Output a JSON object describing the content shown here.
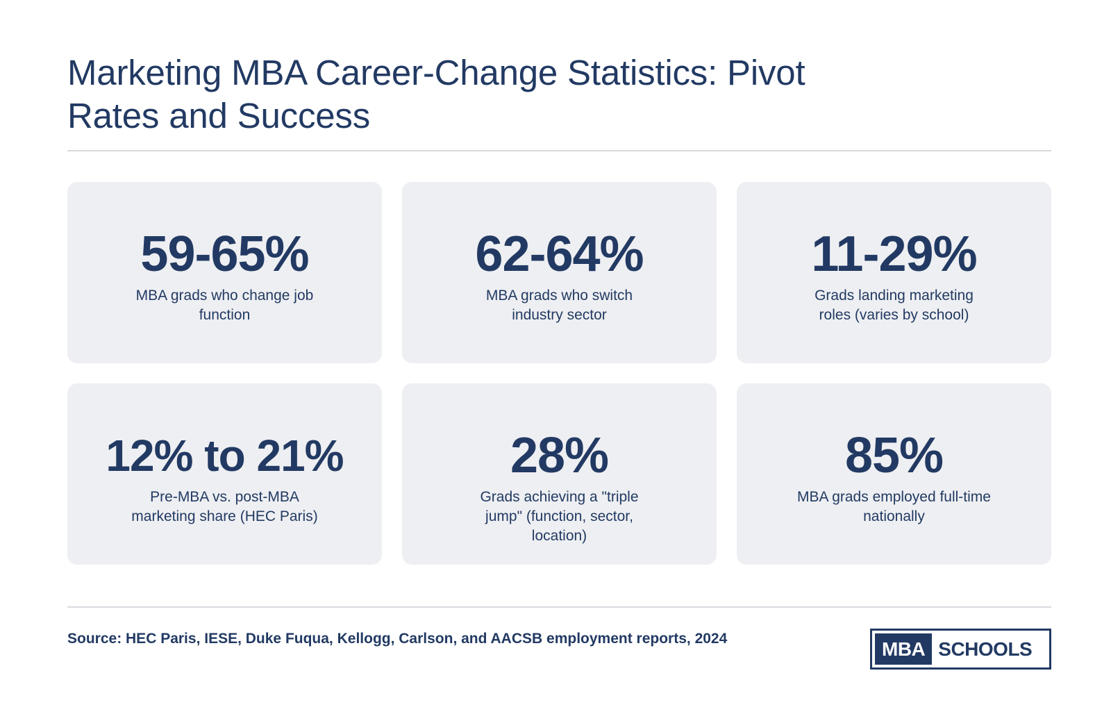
{
  "title": "Marketing MBA Career-Change Statistics: Pivot Rates and Success",
  "stats": [
    {
      "value": "59-65%",
      "label": "MBA grads who change job function"
    },
    {
      "value": "62-64%",
      "label": "MBA grads who switch industry sector"
    },
    {
      "value": "11-29%",
      "label": "Grads landing marketing roles (varies by school)"
    },
    {
      "value": "12% to 21%",
      "label": "Pre-MBA vs. post-MBA marketing share (HEC Paris)"
    },
    {
      "value": "28%",
      "label": "Grads achieving a \"triple jump\" (function, sector, location)"
    },
    {
      "value": "85%",
      "label": "MBA grads employed full-time nationally"
    }
  ],
  "source": "Source: HEC Paris, IESE, Duke Fuqua, Kellogg, Carlson, and AACSB employment reports, 2024",
  "logo": {
    "part1": "MBA",
    "part2": "SCHOOLS"
  },
  "colors": {
    "primary": "#223a63",
    "card_bg": "#eeeff2",
    "rule": "#d8dade"
  }
}
